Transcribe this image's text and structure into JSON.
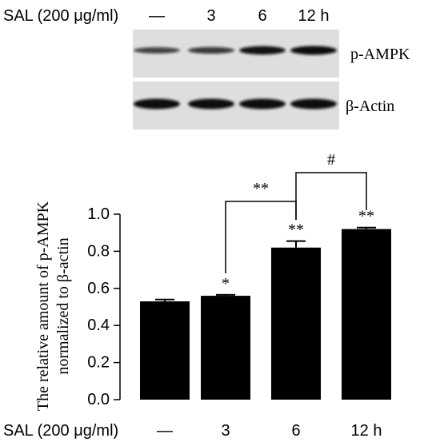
{
  "blot": {
    "treatment_label": "SAL (200 μg/ml)",
    "lanes": [
      "—",
      "3",
      "6",
      "12 h"
    ],
    "panels": [
      {
        "label": "p-AMPK",
        "band_intensity": [
          0.55,
          0.62,
          0.95,
          1.0
        ]
      },
      {
        "label": "β-Actin",
        "band_intensity": [
          1.0,
          1.0,
          1.0,
          1.0
        ]
      }
    ]
  },
  "chart_data": {
    "type": "bar",
    "ylabel": "The relative amount of p-AMPK normalized to β-actin",
    "ylabel_lines": [
      "The relative amount of p-AMPK",
      "normalized to β-actin"
    ],
    "xlabel": "SAL (200 μg/ml)",
    "categories": [
      "—",
      "3",
      "6",
      "12 h"
    ],
    "values": [
      0.53,
      0.56,
      0.82,
      0.92
    ],
    "errors": [
      0.01,
      0.005,
      0.035,
      0.008
    ],
    "significance": [
      "",
      "*",
      "**",
      "**"
    ],
    "ylim": [
      0.0,
      1.0
    ],
    "yticks": [
      "0.0",
      "0.2",
      "0.4",
      "0.6",
      "0.8",
      "1.0"
    ],
    "bar_color": "#000000",
    "comparisons": [
      {
        "from": 1,
        "to": 2,
        "label": "**"
      },
      {
        "from": 2,
        "to": 3,
        "label": "#"
      }
    ]
  }
}
